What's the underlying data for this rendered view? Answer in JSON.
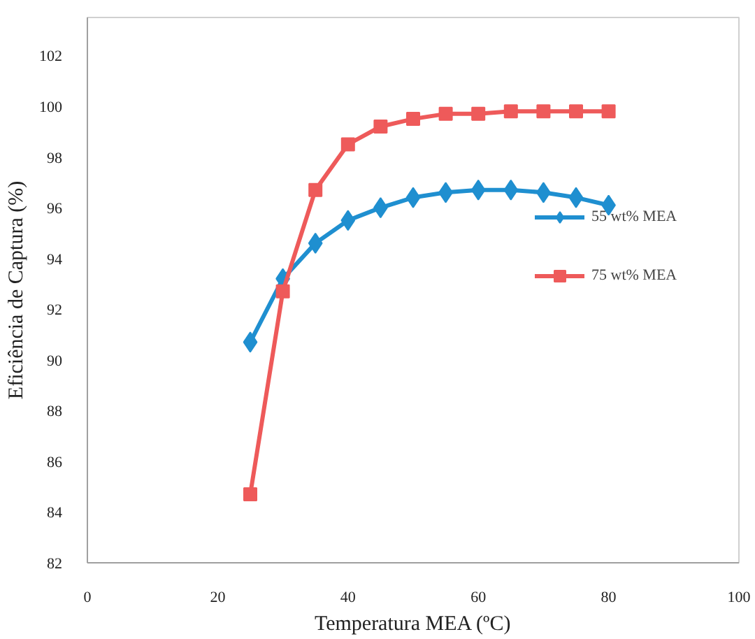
{
  "chart_data": {
    "type": "line",
    "xlabel": "Temperatura MEA (ºC)",
    "ylabel": "Eficiência de Captura (%)",
    "x": [
      25,
      30,
      35,
      40,
      45,
      50,
      55,
      60,
      65,
      70,
      75,
      80
    ],
    "series": [
      {
        "name": "55 wt% MEA",
        "color": "#1f8fd0",
        "marker": "diamond",
        "values": [
          90.7,
          93.2,
          94.6,
          95.5,
          96.0,
          96.4,
          96.6,
          96.7,
          96.7,
          96.6,
          96.4,
          96.1
        ]
      },
      {
        "name": "75 wt% MEA",
        "color": "#ee5a5a",
        "marker": "square",
        "values": [
          84.7,
          92.7,
          96.7,
          98.5,
          99.2,
          99.5,
          99.7,
          99.7,
          99.8,
          99.8,
          99.8,
          99.8
        ]
      }
    ],
    "xlim": [
      0,
      100
    ],
    "xticks": [
      0,
      20,
      40,
      60,
      80,
      100
    ],
    "ylim": [
      82,
      103.5
    ],
    "yticks": [
      82,
      84,
      86,
      88,
      90,
      92,
      94,
      96,
      98,
      100,
      102
    ],
    "grid": false,
    "legend": "right",
    "line_style": "solid"
  }
}
